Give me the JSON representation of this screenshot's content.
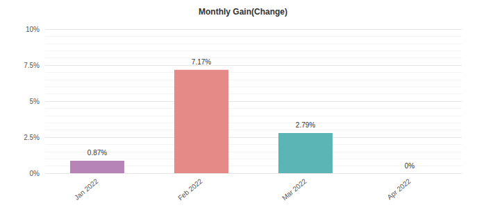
{
  "chart_data": {
    "type": "bar",
    "title": "Monthly Gain(Change)",
    "categories": [
      "Jan 2022",
      "Feb 2022",
      "Mar 2022",
      "Apr 2022"
    ],
    "values": [
      0.87,
      7.17,
      2.79,
      0
    ],
    "value_labels": [
      "0.87%",
      "7.17%",
      "2.79%",
      "0%"
    ],
    "colors": [
      "#b784b7",
      "#e68a87",
      "#5bb5b5",
      "#f0b060"
    ],
    "ylim": [
      0,
      10
    ],
    "yticks": [
      {
        "value": 0,
        "label": "0%"
      },
      {
        "value": 2.5,
        "label": "2.5%"
      },
      {
        "value": 5,
        "label": "5%"
      },
      {
        "value": 7.5,
        "label": "7.5%"
      },
      {
        "value": 10,
        "label": "10%"
      }
    ],
    "grid": true,
    "data_labels": true
  }
}
